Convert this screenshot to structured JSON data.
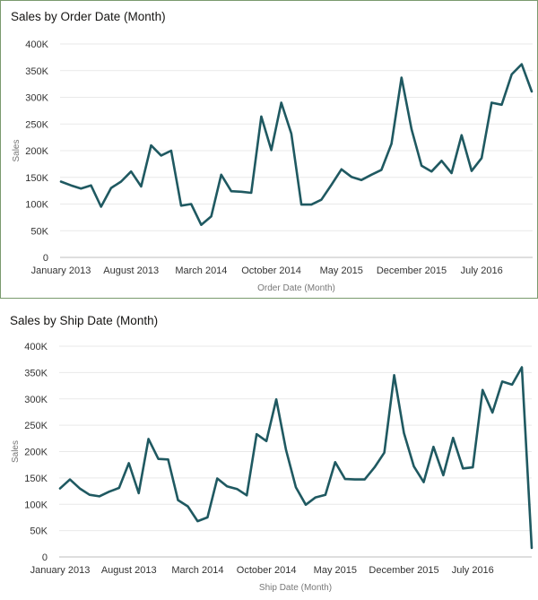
{
  "colors": {
    "line": "#1f5961",
    "grid": "#e9e9e9",
    "text": "#333333",
    "axis_title": "#777777"
  },
  "chart_data": [
    {
      "type": "line",
      "title": "Sales by Order Date (Month)",
      "xlabel": "Order Date (Month)",
      "ylabel": "Sales",
      "ylim": [
        0,
        400000
      ],
      "y_ticks": [
        0,
        50000,
        100000,
        150000,
        200000,
        250000,
        300000,
        350000,
        400000
      ],
      "y_tick_labels": [
        "0",
        "50K",
        "100K",
        "150K",
        "200K",
        "250K",
        "300K",
        "350K",
        "400K"
      ],
      "x_tick_indices": [
        0,
        7,
        14,
        21,
        28,
        35,
        42
      ],
      "x_tick_labels": [
        "January 2013",
        "August 2013",
        "March 2014",
        "October 2014",
        "May 2015",
        "December 2015",
        "July 2016"
      ],
      "series": [
        {
          "name": "Sales",
          "values": [
            142000,
            135000,
            129000,
            135000,
            95000,
            130000,
            142000,
            161000,
            133000,
            210000,
            191000,
            200000,
            97000,
            100000,
            61000,
            77000,
            155000,
            124000,
            123000,
            121000,
            264000,
            201000,
            290000,
            232000,
            99000,
            99000,
            108000,
            136000,
            165000,
            151000,
            145000,
            155000,
            164000,
            213000,
            337000,
            240000,
            172000,
            161000,
            181000,
            158000,
            229000,
            162000,
            186000,
            290000,
            286000,
            343000,
            362000,
            311000
          ]
        }
      ]
    },
    {
      "type": "line",
      "title": "Sales by Ship Date (Month)",
      "xlabel": "Ship Date (Month)",
      "ylabel": "Sales",
      "ylim": [
        0,
        400000
      ],
      "y_ticks": [
        0,
        50000,
        100000,
        150000,
        200000,
        250000,
        300000,
        350000,
        400000
      ],
      "y_tick_labels": [
        "0",
        "50K",
        "100K",
        "150K",
        "200K",
        "250K",
        "300K",
        "350K",
        "400K"
      ],
      "x_tick_indices": [
        0,
        7,
        14,
        21,
        28,
        35,
        42
      ],
      "x_tick_labels": [
        "January 2013",
        "August 2013",
        "March 2014",
        "October 2014",
        "May 2015",
        "December 2015",
        "July 2016"
      ],
      "series": [
        {
          "name": "Sales",
          "values": [
            130000,
            147000,
            130000,
            118000,
            115000,
            124000,
            131000,
            178000,
            121000,
            224000,
            186000,
            185000,
            108000,
            96000,
            68000,
            75000,
            149000,
            134000,
            129000,
            117000,
            233000,
            220000,
            299000,
            203000,
            132000,
            99000,
            113000,
            118000,
            180000,
            148000,
            147000,
            147000,
            170000,
            198000,
            345000,
            235000,
            172000,
            142000,
            209000,
            155000,
            226000,
            168000,
            170000,
            317000,
            274000,
            333000,
            327000,
            360000,
            17000
          ]
        }
      ]
    }
  ]
}
